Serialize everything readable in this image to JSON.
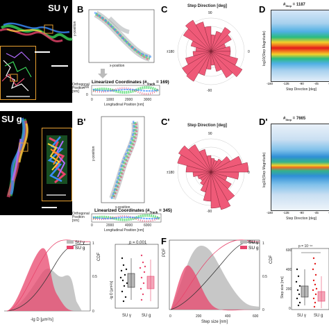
{
  "colors": {
    "su_y": "#b9b9b9",
    "su_g": "#e8456c",
    "rose": "#ef5a78",
    "heat_red": "#e21b1b"
  },
  "row1": {
    "su_label": "SU γ",
    "panel_B": {
      "label": "B",
      "y_axis": "y-position",
      "x_axis": "x-position"
    },
    "linearized": {
      "title": "Linearized Coordinates (#",
      "title_sub": "Track",
      "title_end": " = 169)",
      "orth": "Orthogonal Position [nm]",
      "long": "Longitudinal Position [nm]",
      "ticks": [
        "0",
        "1000",
        "2000",
        "3000"
      ],
      "yticks": [
        "200",
        "0"
      ]
    },
    "panel_C": {
      "label": "C",
      "title": "Step Direction [deg]",
      "tick_0": "0",
      "tick_90": "90",
      "tick_m90": "-90",
      "tick_180": "±180"
    },
    "panel_D": {
      "label": "D",
      "title": "#",
      "title_sub": "Step",
      "title_end": " = 1187",
      "ylabel": "log10(Step Magnitude)",
      "xlabel": "Step Direction [deg]",
      "xticks": [
        "-180",
        "-135",
        "-90",
        "-45",
        "0",
        "45",
        "90",
        "135",
        "180"
      ]
    }
  },
  "row2": {
    "su_label": "SU g",
    "panel_B": {
      "label": "B'",
      "y_axis": "y-position",
      "x_axis": "x-position"
    },
    "linearized": {
      "title": "Linearized Coordinates (#",
      "title_sub": "Track",
      "title_end": " = 345)",
      "orth": "Orthogonal Position [nm]",
      "long": "Longitudinal Position [nm]",
      "ticks": [
        "0",
        "2000",
        "4000",
        "6000"
      ],
      "yticks": [
        "200",
        "0"
      ]
    },
    "panel_C": {
      "label": "C'",
      "title": "Step Direction [deg]",
      "tick_0": "0",
      "tick_90": "90",
      "tick_m90": "-90",
      "tick_180": "±180"
    },
    "panel_D": {
      "label": "D'",
      "title": "#",
      "title_sub": "Step",
      "title_end": " = 7665",
      "ylabel": "log10(Step Magnitude)",
      "xlabel": "Step Direction [deg]",
      "xticks": [
        "-180",
        "-135",
        "-90",
        "-45",
        "0",
        "45",
        "90",
        "135",
        "180"
      ]
    }
  },
  "panel_E": {
    "xlabel": "-lg D [µm²/s]",
    "ylabel": "CDF",
    "legend": [
      "SU γ",
      "SU g"
    ],
    "yticks": [
      "0",
      "0.5",
      "1"
    ],
    "box_ylabel": "-lg D [µm²/s]",
    "box_p": "p = 0.001",
    "box_cats": [
      "SU γ",
      "SU g"
    ]
  },
  "panel_F": {
    "label": "F",
    "xlabel": "Step size [nm]",
    "ylabel": "PDF",
    "y2label": "CDF",
    "legend": [
      "SU γ",
      "SU g"
    ],
    "xticks": [
      "0",
      "200",
      "400",
      "600"
    ],
    "y2ticks": [
      "0",
      "0.5",
      "1"
    ],
    "box_ylabel": "Step size [nm]",
    "box_p": "p = 10⁻¹⁶",
    "box_cats": [
      "SU γ",
      "SU g"
    ],
    "box_yticks": [
      "0",
      "200",
      "400",
      "600"
    ]
  }
}
